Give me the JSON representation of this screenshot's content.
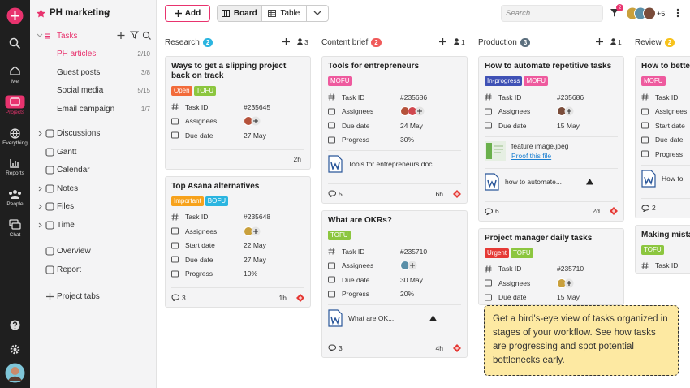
{
  "rail": {
    "items": [
      "Me",
      "Projects",
      "Everything",
      "Reports",
      "People",
      "Chat"
    ]
  },
  "sidebar": {
    "project": "PH marketing",
    "tasks": "Tasks",
    "lists": [
      {
        "name": "PH articles",
        "count": "2/10"
      },
      {
        "name": "Guest posts",
        "count": "3/8"
      },
      {
        "name": "Social media",
        "count": "5/15"
      },
      {
        "name": "Email campaign",
        "count": "1/7"
      }
    ],
    "nav": [
      "Discussions",
      "Gantt",
      "Calendar",
      "Notes",
      "Files",
      "Time"
    ],
    "nav2": [
      "Overview",
      "Report"
    ],
    "project_tabs": "Project tabs"
  },
  "toolbar": {
    "add": "Add",
    "views": [
      "Board",
      "Table"
    ],
    "search": "Search",
    "filter_count": "2",
    "more_members": "+5"
  },
  "columns": [
    {
      "name": "Research",
      "count": "2",
      "count_color": "#2bb5e0",
      "members": "3",
      "cards": [
        {
          "title": "Ways to get a slipping project back on track",
          "tags": [
            {
              "label": "Open",
              "color": "#f26b3a"
            },
            {
              "label": "TOFU",
              "color": "#8cc63f"
            }
          ],
          "fields": [
            {
              "label": "Task ID",
              "value": "#235645"
            },
            {
              "label": "Assignees",
              "avatar_colors": [
                "#b5523b"
              ]
            },
            {
              "label": "Due date",
              "value": "27 May"
            }
          ],
          "time": "2h"
        },
        {
          "title": "Top Asana alternatives",
          "tags": [
            {
              "label": "Important",
              "color": "#f7a21b"
            },
            {
              "label": "BOFU",
              "color": "#2bb5e0"
            }
          ],
          "fields": [
            {
              "label": "Task ID",
              "value": "#235648"
            },
            {
              "label": "Assignees",
              "avatar_colors": [
                "#c9a03c"
              ]
            },
            {
              "label": "Start date",
              "value": "22 May"
            },
            {
              "label": "Due date",
              "value": "27 May"
            },
            {
              "label": "Progress",
              "value": "10%"
            }
          ],
          "comments": "3",
          "time": "1h",
          "priority": true
        }
      ]
    },
    {
      "name": "Content brief",
      "count": "2",
      "count_color": "#f05a5a",
      "members": "1",
      "cards": [
        {
          "title": "Tools for entrepreneurs",
          "tags": [
            {
              "label": "MOFU",
              "color": "#ee5a9e"
            }
          ],
          "fields": [
            {
              "label": "Task ID",
              "value": "#235686"
            },
            {
              "label": "Assignees",
              "avatar_colors": [
                "#b5523b",
                "#d0484f"
              ]
            },
            {
              "label": "Due date",
              "value": "24 May"
            },
            {
              "label": "Progress",
              "value": "30%"
            }
          ],
          "attachments": [
            {
              "name": "Tools for entrepreneurs.doc",
              "icon": "word"
            }
          ],
          "comments": "5",
          "time": "6h",
          "priority": true
        },
        {
          "title": "What are OKRs?",
          "tags": [
            {
              "label": "TOFU",
              "color": "#8cc63f"
            }
          ],
          "fields": [
            {
              "label": "Task ID",
              "value": "#235710"
            },
            {
              "label": "Assignees",
              "avatar_colors": [
                "#5a8fa8"
              ]
            },
            {
              "label": "Due date",
              "value": "30 May"
            },
            {
              "label": "Progress",
              "value": "20%"
            }
          ],
          "attachments": [
            {
              "name": "What are OK...",
              "icon": "word",
              "drive": true
            }
          ],
          "comments": "3",
          "time": "4h",
          "priority": true
        }
      ]
    },
    {
      "name": "Production",
      "count": "3",
      "count_color": "#5c6f7e",
      "members": "1",
      "cards": [
        {
          "title": "How to automate repetitive tasks",
          "tags": [
            {
              "label": "In-progress",
              "color": "#3f51b5"
            },
            {
              "label": "MOFU",
              "color": "#ee5a9e"
            }
          ],
          "fields": [
            {
              "label": "Task ID",
              "value": "#235686"
            },
            {
              "label": "Assignees",
              "avatar_colors": [
                "#7a4c3a"
              ]
            },
            {
              "label": "Due date",
              "value": "15 May"
            }
          ],
          "attachments": [
            {
              "name": "feature image.jpeg",
              "link": "Proof this file",
              "icon": "image"
            },
            {
              "name": "how to automate...",
              "icon": "word",
              "drive": true
            }
          ],
          "comments": "6",
          "time": "2d",
          "priority": true
        },
        {
          "title": "Project manager daily tasks",
          "tags": [
            {
              "label": "Urgent",
              "color": "#e53935"
            },
            {
              "label": "TOFU",
              "color": "#8cc63f"
            }
          ],
          "fields": [
            {
              "label": "Task ID",
              "value": "#235710"
            },
            {
              "label": "Assignees",
              "avatar_colors": [
                "#c9a03c"
              ]
            },
            {
              "label": "Due date",
              "value": "15 May"
            }
          ]
        }
      ]
    },
    {
      "name": "Review",
      "count": "2",
      "count_color": "#f7c21b",
      "cards": [
        {
          "title": "How to better h deadlines as a",
          "tags": [
            {
              "label": "MOFU",
              "color": "#ee5a9e"
            }
          ],
          "fields": [
            {
              "label": "Task ID"
            },
            {
              "label": "Assignees"
            },
            {
              "label": "Start date"
            },
            {
              "label": "Due date"
            },
            {
              "label": "Progress"
            }
          ],
          "attachments": [
            {
              "name": "How to",
              "icon": "word"
            }
          ],
          "comments": "2"
        },
        {
          "title": "Making mistak",
          "tags": [
            {
              "label": "TOFU",
              "color": "#8cc63f"
            }
          ],
          "fields": [
            {
              "label": "Task ID"
            }
          ]
        }
      ]
    }
  ],
  "tooltip": "Get a bird's-eye view of tasks organized in stages of your workflow. See how tasks are progressing and spot potential bottlenecks early."
}
